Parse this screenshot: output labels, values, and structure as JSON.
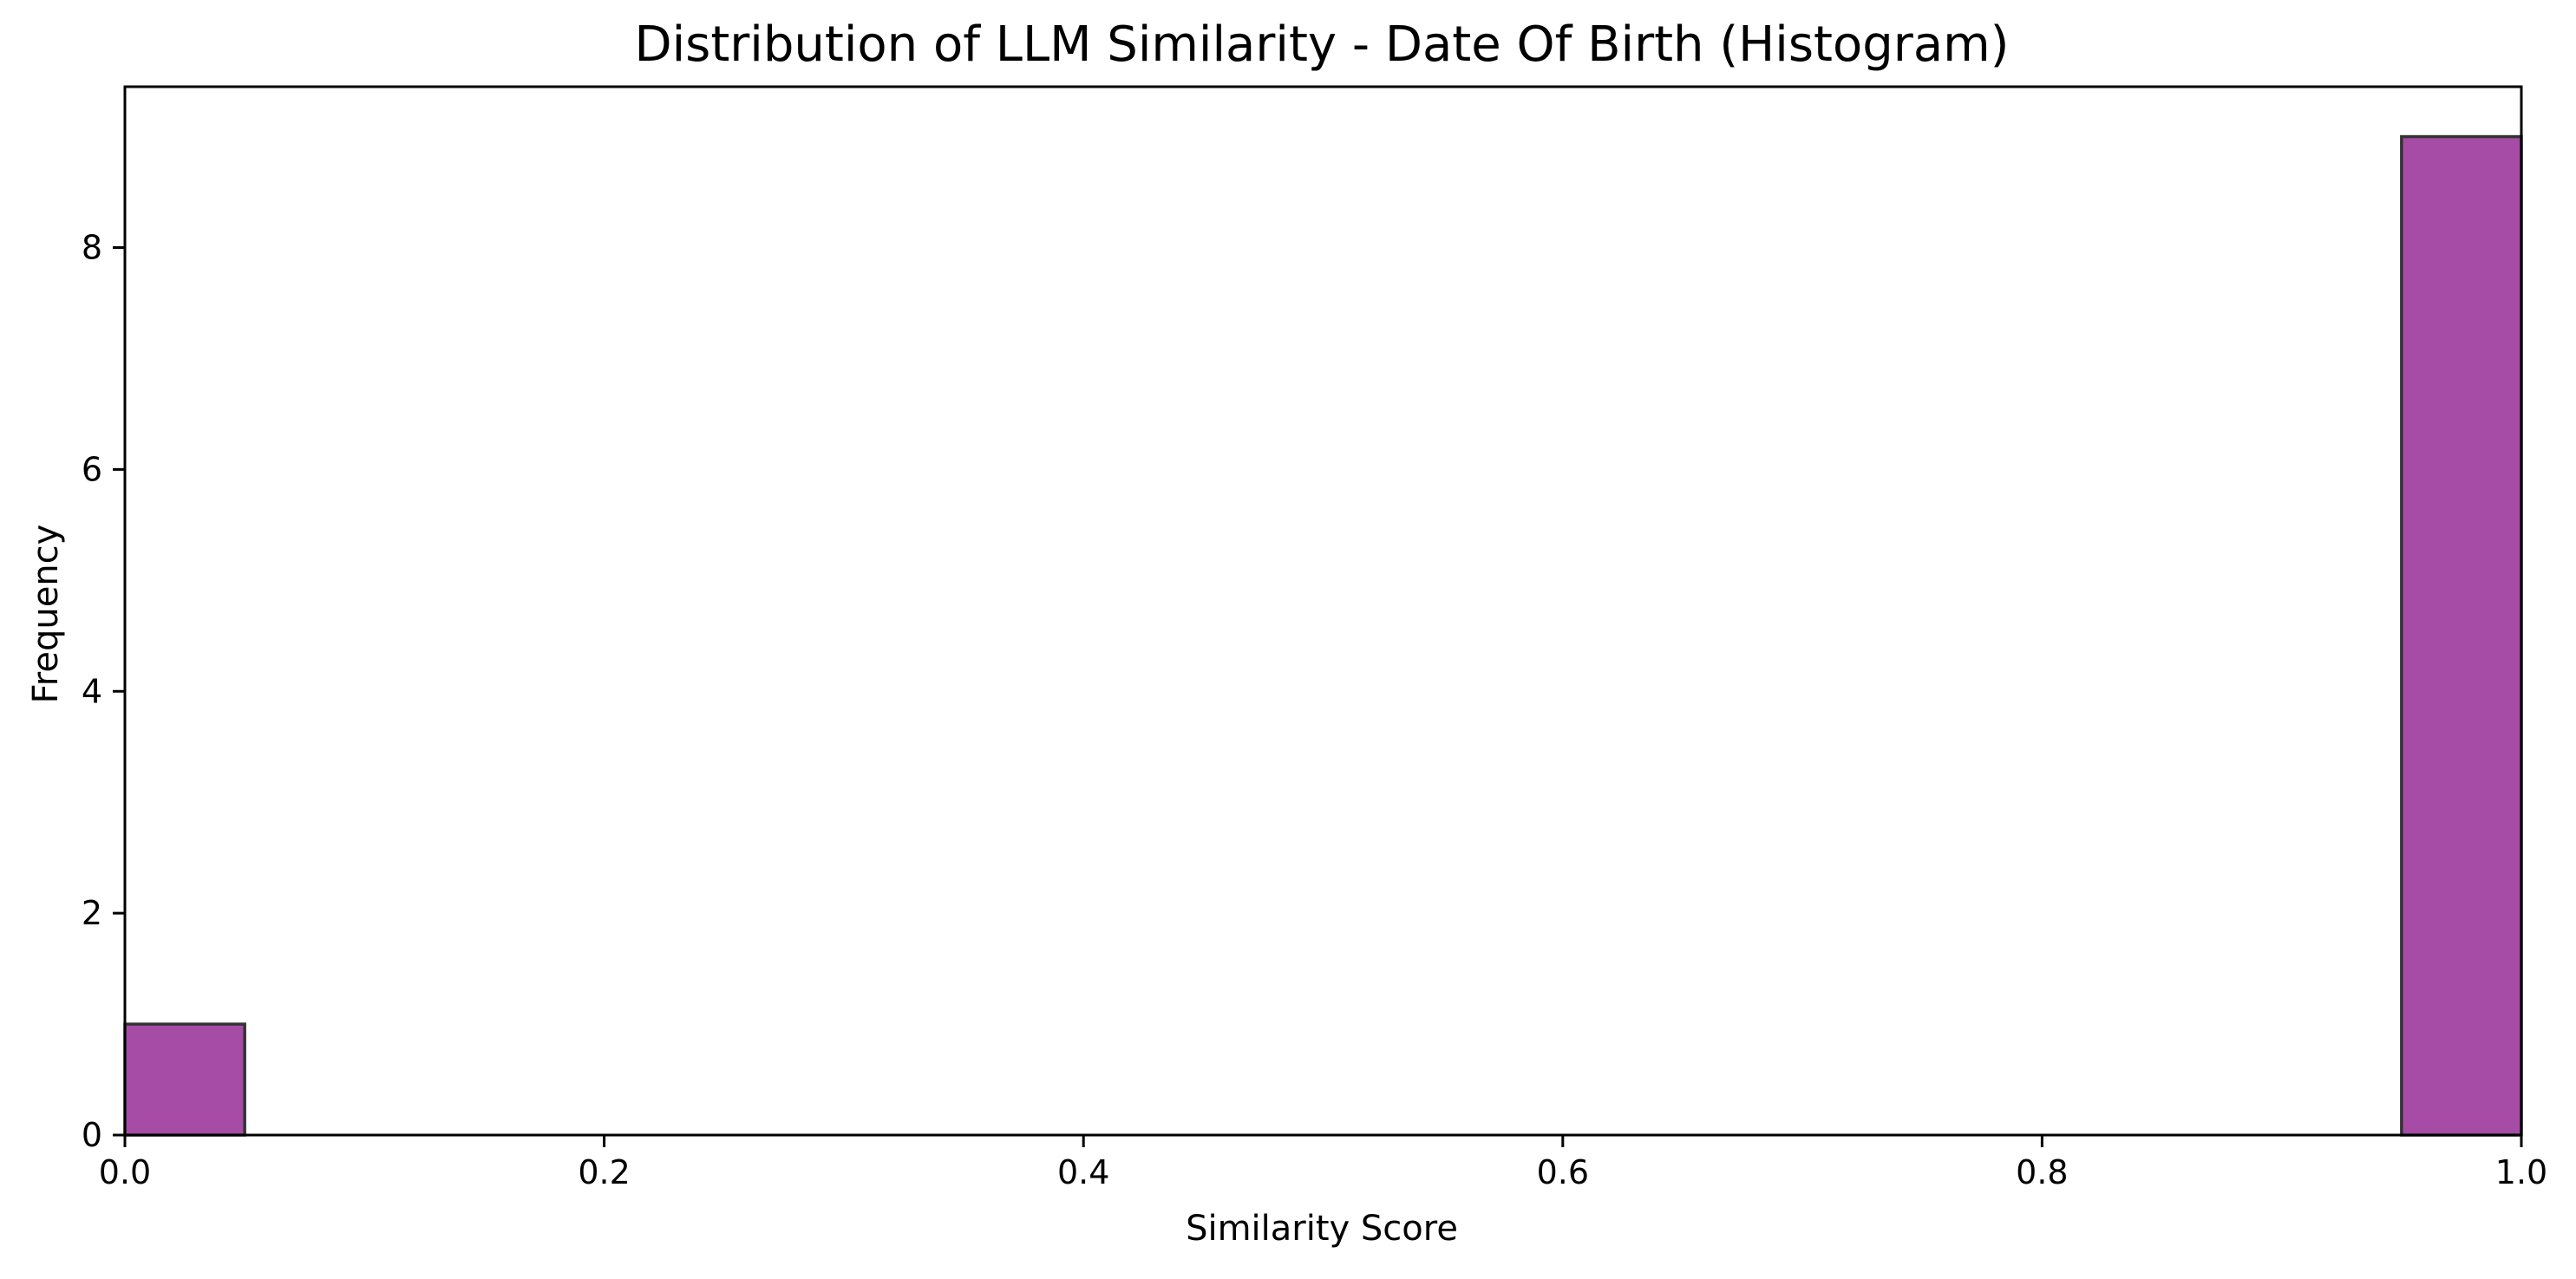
{
  "chart_data": {
    "type": "bar",
    "title": "Distribution of LLM Similarity - Date Of Birth (Histogram)",
    "xlabel": "Similarity Score",
    "ylabel": "Frequency",
    "xlim": [
      0.0,
      1.0
    ],
    "ylim": [
      0,
      9.45
    ],
    "xticks": [
      0.0,
      0.2,
      0.4,
      0.6,
      0.8,
      1.0
    ],
    "xtick_labels": [
      "0.0",
      "0.2",
      "0.4",
      "0.6",
      "0.8",
      "1.0"
    ],
    "yticks": [
      0,
      2,
      4,
      6,
      8
    ],
    "ytick_labels": [
      "0",
      "2",
      "4",
      "6",
      "8"
    ],
    "bins": [
      {
        "x0": 0.0,
        "x1": 0.05,
        "count": 1
      },
      {
        "x0": 0.95,
        "x1": 1.0,
        "count": 9
      }
    ],
    "bar_color": "#a64ca6",
    "bar_edge_color": "#333333",
    "grid": false
  }
}
